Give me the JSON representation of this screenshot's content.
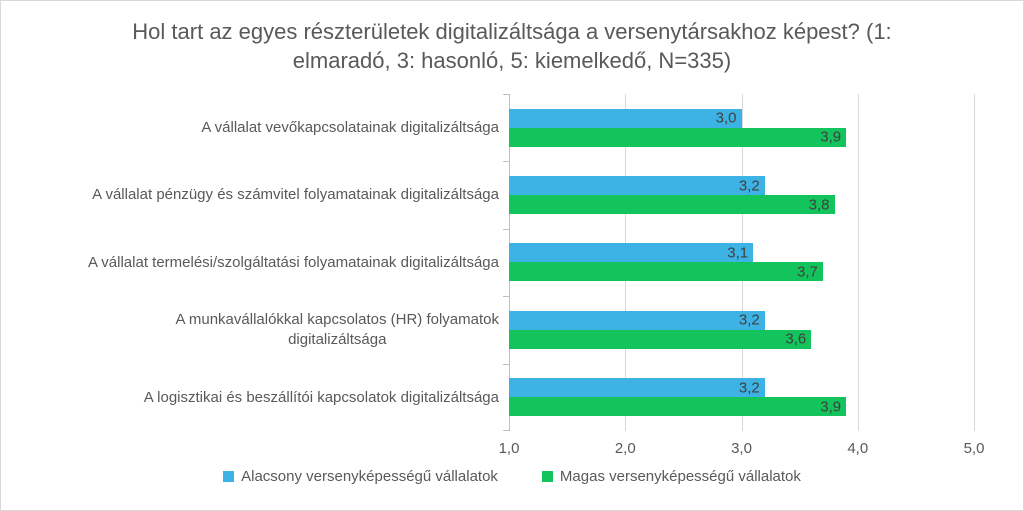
{
  "chart_data": {
    "type": "bar",
    "orientation": "horizontal",
    "title": "Hol tart az egyes részterületek digitalizáltsága a versenytársakhoz képest? (1: elmaradó, 3: hasonló, 5: kiemelkedő, N=335)",
    "categories": [
      "A vállalat vevőkapcsolatainak digitalizáltsága",
      "A vállalat pénzügy és számvitel folyamatainak digitalizáltsága",
      "A vállalat termelési/szolgáltatási folyamatainak digitalizáltsága",
      "A munkavállalókkal kapcsolatos (HR) folyamatok\ndigitalizáltsága",
      "A logisztikai és beszállítói kapcsolatok digitalizáltsága"
    ],
    "series": [
      {
        "name": "Alacsony versenyképességű vállalatok",
        "color": "#3DB2E5",
        "values": [
          3.0,
          3.2,
          3.1,
          3.2,
          3.2
        ],
        "value_labels": [
          "3,0",
          "3,2",
          "3,1",
          "3,2",
          "3,2"
        ]
      },
      {
        "name": "Magas versenyképességű vállalatok",
        "color": "#13C35B",
        "values": [
          3.9,
          3.8,
          3.7,
          3.6,
          3.9
        ],
        "value_labels": [
          "3,9",
          "3,8",
          "3,7",
          "3,6",
          "3,9"
        ]
      }
    ],
    "xlim": [
      1.0,
      5.0
    ],
    "x_ticks": [
      "1,0",
      "2,0",
      "3,0",
      "4,0",
      "5,0"
    ],
    "grid": true,
    "legend_position": "bottom"
  }
}
